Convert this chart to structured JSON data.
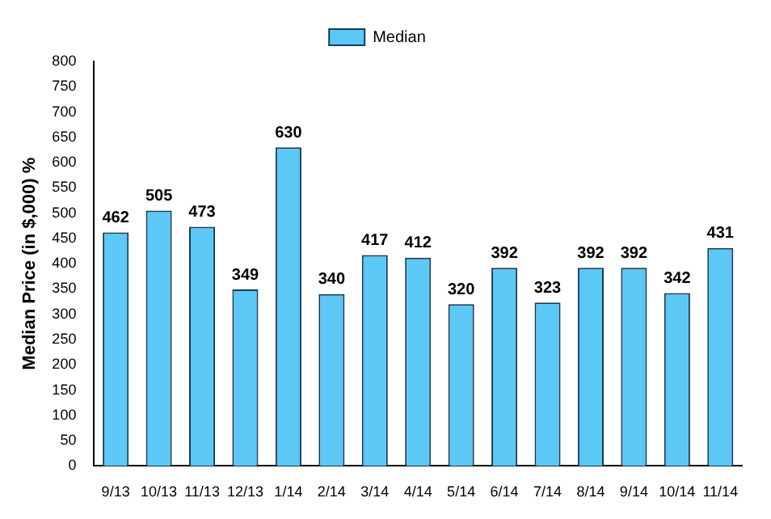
{
  "chart_data": {
    "type": "bar",
    "ylabel": "Median Price (in $,000) %",
    "categories": [
      "9/13",
      "10/13",
      "11/13",
      "12/13",
      "1/14",
      "2/14",
      "3/14",
      "4/14",
      "5/14",
      "6/14",
      "7/14",
      "8/14",
      "9/14",
      "10/14",
      "11/14"
    ],
    "series": [
      {
        "name": "Median",
        "color": "#5bc8f5",
        "values": [
          462,
          505,
          473,
          349,
          630,
          340,
          417,
          412,
          320,
          392,
          323,
          392,
          392,
          342,
          431
        ]
      }
    ],
    "ylim": [
      0,
      800
    ],
    "yticks": [
      0,
      50,
      100,
      150,
      200,
      250,
      300,
      350,
      400,
      450,
      500,
      550,
      600,
      650,
      700,
      750,
      800
    ],
    "grid": false,
    "legend": "top",
    "data_labels": true
  }
}
